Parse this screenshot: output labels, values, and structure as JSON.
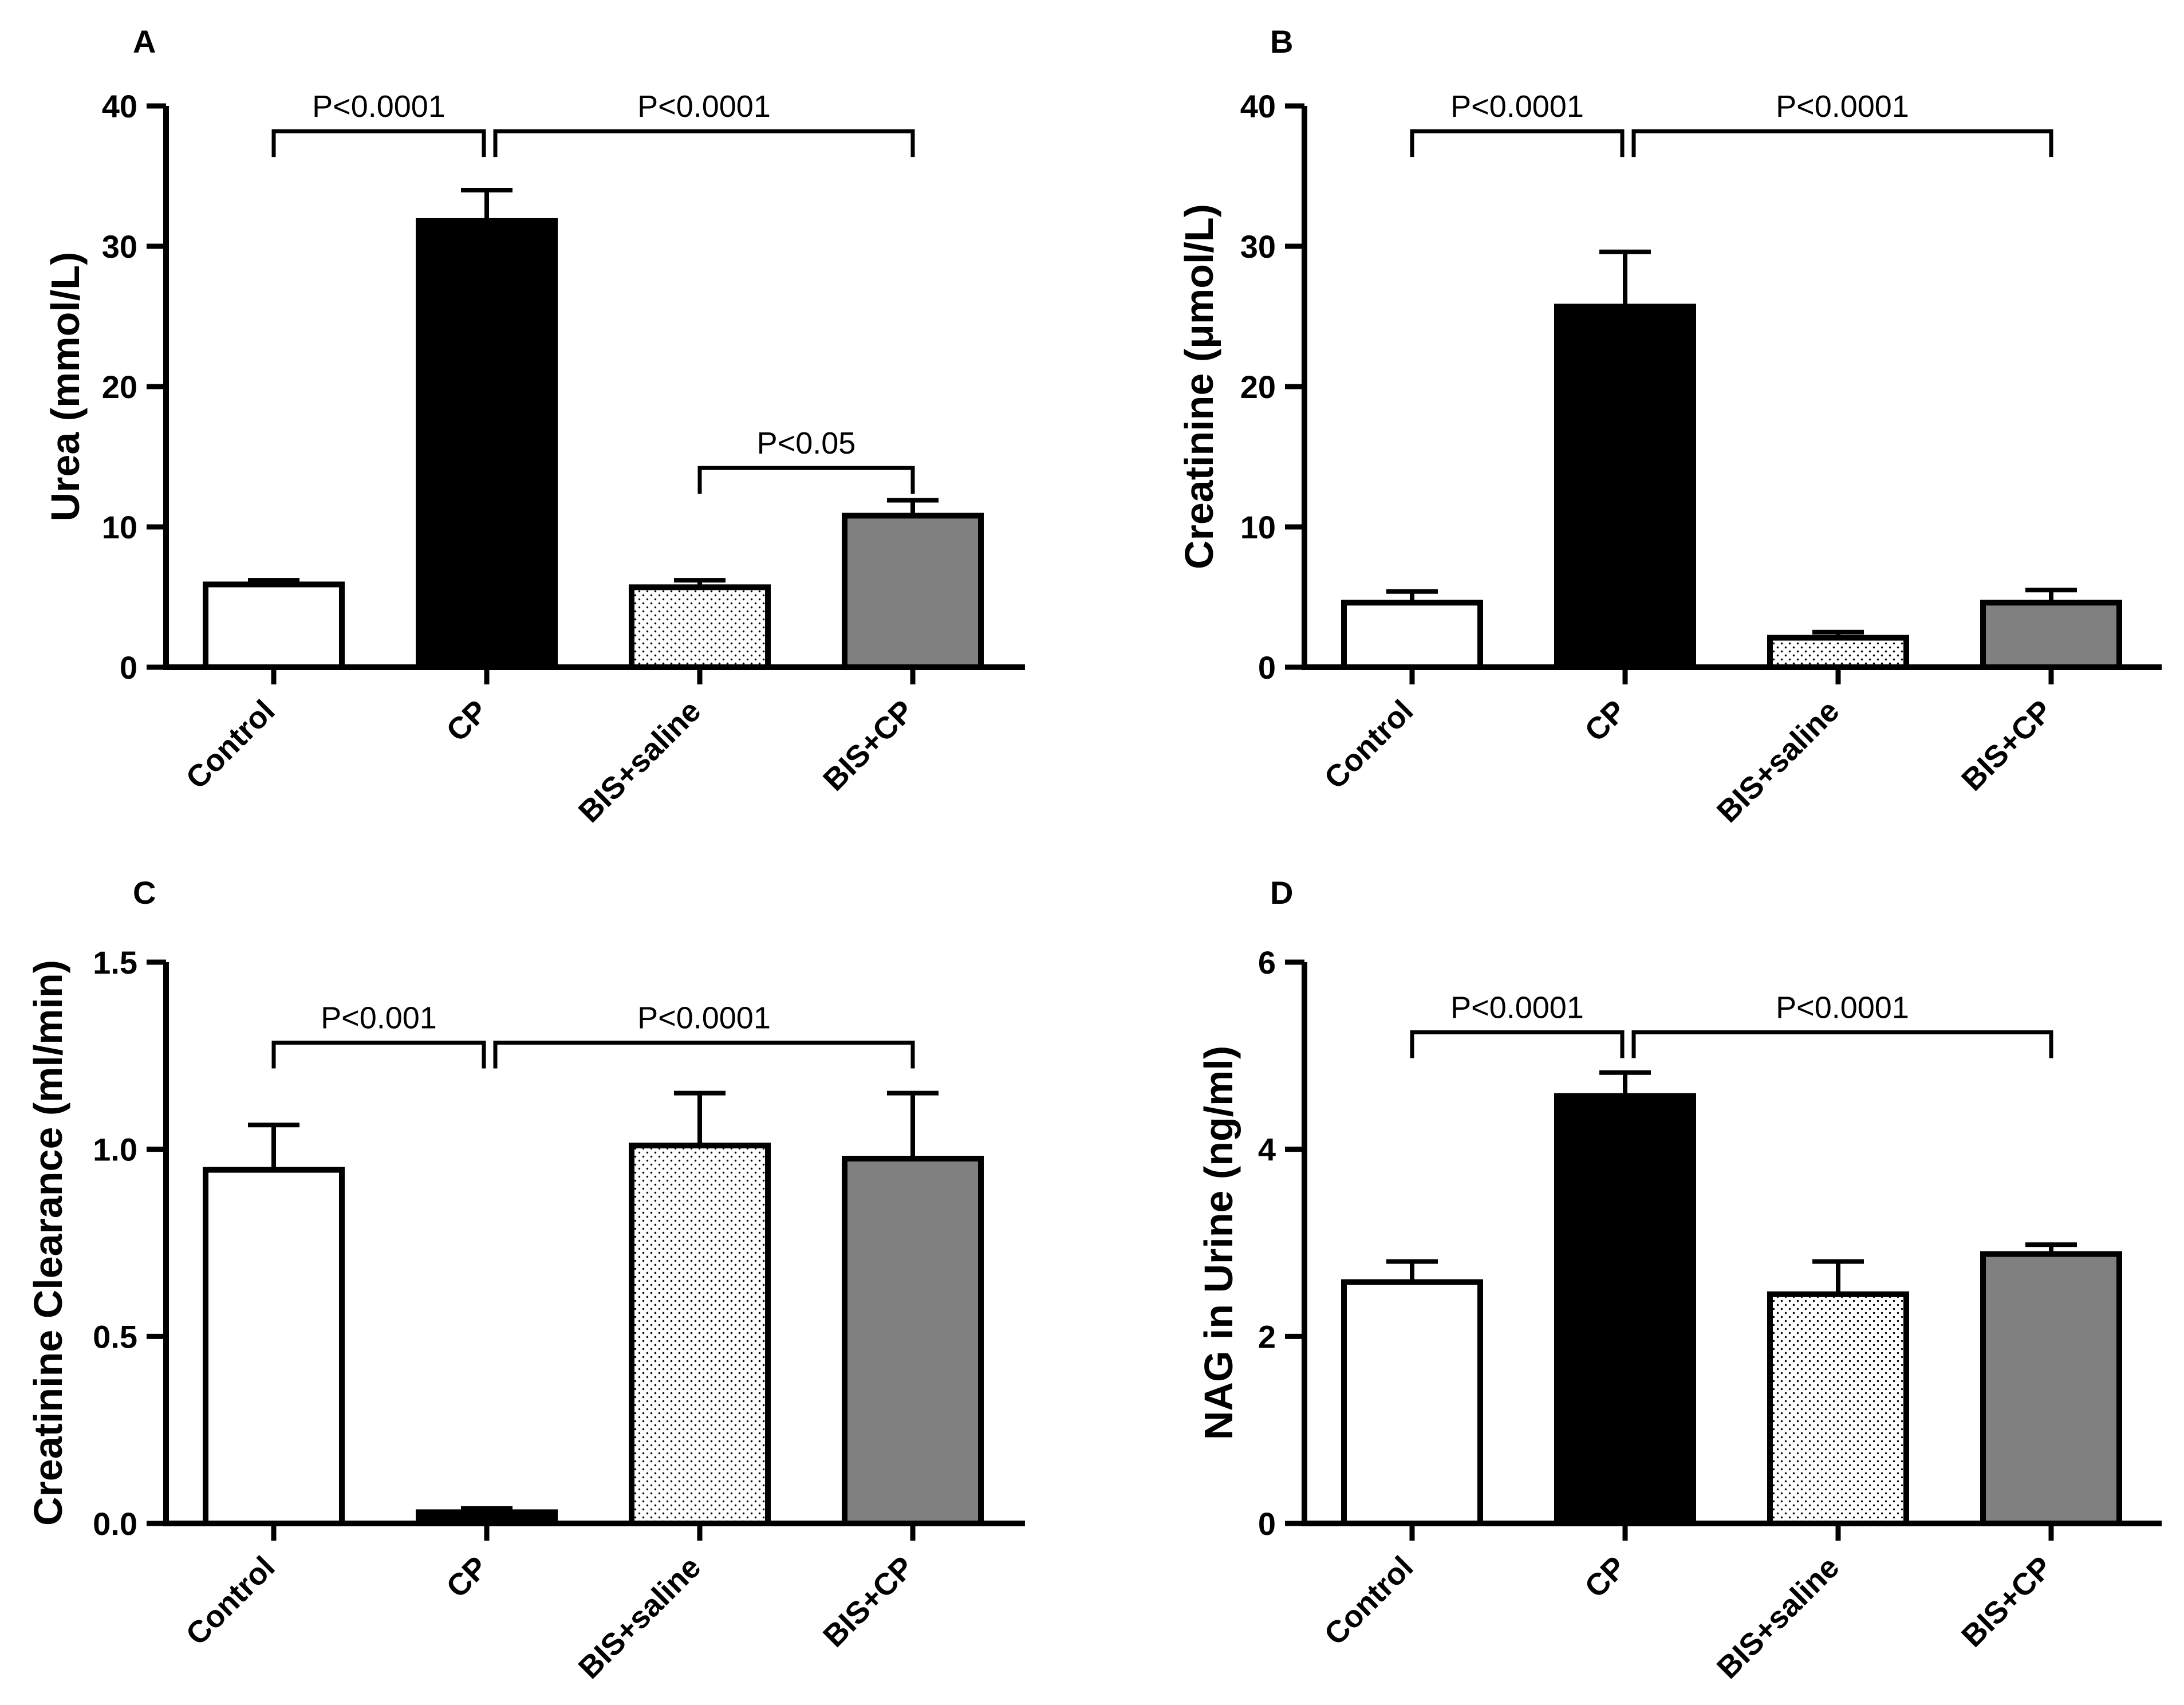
{
  "chart_data": [
    {
      "type": "bar",
      "panel": "A",
      "ylabel": "Urea (mmol/L)",
      "ylim": [
        0,
        40
      ],
      "yticks": [
        0,
        10,
        20,
        30,
        40
      ],
      "ytick_labels": [
        "0",
        "10",
        "20",
        "30",
        "40"
      ],
      "categories": [
        "Control",
        "CP",
        "BIS+saline",
        "BIS+CP"
      ],
      "values": [
        5.9,
        31.8,
        5.7,
        10.8
      ],
      "errors": [
        0.3,
        2.2,
        0.5,
        1.1
      ],
      "fills": [
        "white",
        "black",
        "dots",
        "gray"
      ],
      "comparisons": [
        {
          "from": 0,
          "to": 1,
          "label": "P<0.0001",
          "level": 38.2
        },
        {
          "from": 1,
          "to": 3,
          "label": "P<0.0001",
          "level": 38.2
        },
        {
          "from": 2,
          "to": 3,
          "label": "P<0.05",
          "level": 14.2
        }
      ]
    },
    {
      "type": "bar",
      "panel": "B",
      "ylabel": "Creatinine (μmol/L)",
      "ylim": [
        0,
        40
      ],
      "yticks": [
        0,
        10,
        20,
        30,
        40
      ],
      "ytick_labels": [
        "0",
        "10",
        "20",
        "30",
        "40"
      ],
      "categories": [
        "Control",
        "CP",
        "BIS+saline",
        "BIS+CP"
      ],
      "values": [
        4.6,
        25.7,
        2.1,
        4.6
      ],
      "errors": [
        0.8,
        3.9,
        0.4,
        0.9
      ],
      "fills": [
        "white",
        "black",
        "dots",
        "gray"
      ],
      "comparisons": [
        {
          "from": 0,
          "to": 1,
          "label": "P<0.0001",
          "level": 38.2
        },
        {
          "from": 1,
          "to": 3,
          "label": "P<0.0001",
          "level": 38.2
        }
      ]
    },
    {
      "type": "bar",
      "panel": "C",
      "ylabel": "Creatinine Clearance (ml/min)",
      "ylim": [
        0,
        1.5
      ],
      "yticks": [
        0,
        0.5,
        1.0,
        1.5
      ],
      "ytick_labels": [
        "0.0",
        "0.5",
        "1.0",
        "1.5"
      ],
      "categories": [
        "Control",
        "CP",
        "BIS+saline",
        "BIS+CP"
      ],
      "values": [
        0.945,
        0.03,
        1.01,
        0.975
      ],
      "errors": [
        0.12,
        0.01,
        0.14,
        0.175
      ],
      "fills": [
        "white",
        "black",
        "dots",
        "gray"
      ],
      "comparisons": [
        {
          "from": 0,
          "to": 1,
          "label": "P<0.001",
          "level": 1.285
        },
        {
          "from": 1,
          "to": 3,
          "label": "P<0.0001",
          "level": 1.285
        }
      ]
    },
    {
      "type": "bar",
      "panel": "D",
      "ylabel": "NAG in Urine (ng/ml)",
      "ylim": [
        0,
        6
      ],
      "yticks": [
        0,
        2,
        4,
        6
      ],
      "ytick_labels": [
        "0",
        "2",
        "4",
        "6"
      ],
      "categories": [
        "Control",
        "CP",
        "BIS+saline",
        "BIS+CP"
      ],
      "values": [
        2.58,
        4.57,
        2.45,
        2.88
      ],
      "errors": [
        0.22,
        0.25,
        0.35,
        0.1
      ],
      "fills": [
        "white",
        "black",
        "dots",
        "gray"
      ],
      "comparisons": [
        {
          "from": 0,
          "to": 1,
          "label": "P<0.0001",
          "level": 5.25
        },
        {
          "from": 1,
          "to": 3,
          "label": "P<0.0001",
          "level": 5.25
        }
      ]
    }
  ]
}
